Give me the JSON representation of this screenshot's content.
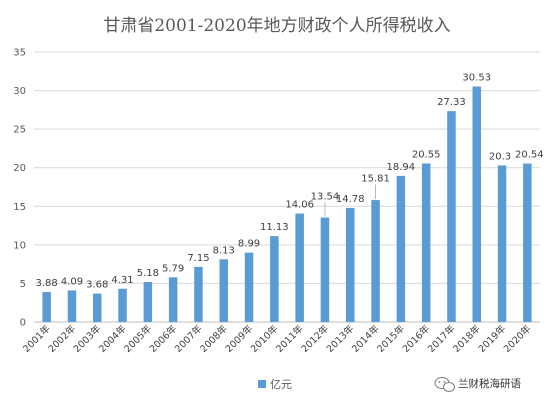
{
  "chart_data": {
    "type": "bar",
    "title": "甘肃省2001-2020年地方财政个人所得税收入",
    "categories": [
      "2001年",
      "2002年",
      "2003年",
      "2004年",
      "2005年",
      "2006年",
      "2007年",
      "2008年",
      "2009年",
      "2010年",
      "2011年",
      "2012年",
      "2013年",
      "2014年",
      "2015年",
      "2016年",
      "2017年",
      "2018年",
      "2019年",
      "2020年"
    ],
    "series": [
      {
        "name": "亿元",
        "color": "#5B9BD5",
        "values": [
          3.88,
          4.09,
          3.68,
          4.31,
          5.18,
          5.79,
          7.15,
          8.13,
          8.99,
          11.13,
          14.06,
          13.54,
          14.78,
          15.81,
          18.94,
          20.55,
          27.33,
          30.53,
          20.3,
          20.54
        ],
        "labels": [
          "3.88",
          "4.09",
          "3.68",
          "4.31",
          "5.18",
          "5.79",
          "7.15",
          "8.13",
          "8.99",
          "11.13",
          "14.06",
          "13.54",
          "14.78",
          "15.81",
          "18.94",
          "20.55",
          "27.33",
          "30.53",
          "20.3",
          "20.54"
        ]
      }
    ],
    "ylim": [
      0,
      35
    ],
    "yticks": [
      0,
      5,
      10,
      15,
      20,
      25,
      30,
      35
    ],
    "grid": true,
    "legend": "bottom",
    "xlabel": "",
    "ylabel": ""
  },
  "watermark": {
    "text": "兰财税海研语",
    "icon": "wechat-icon"
  }
}
